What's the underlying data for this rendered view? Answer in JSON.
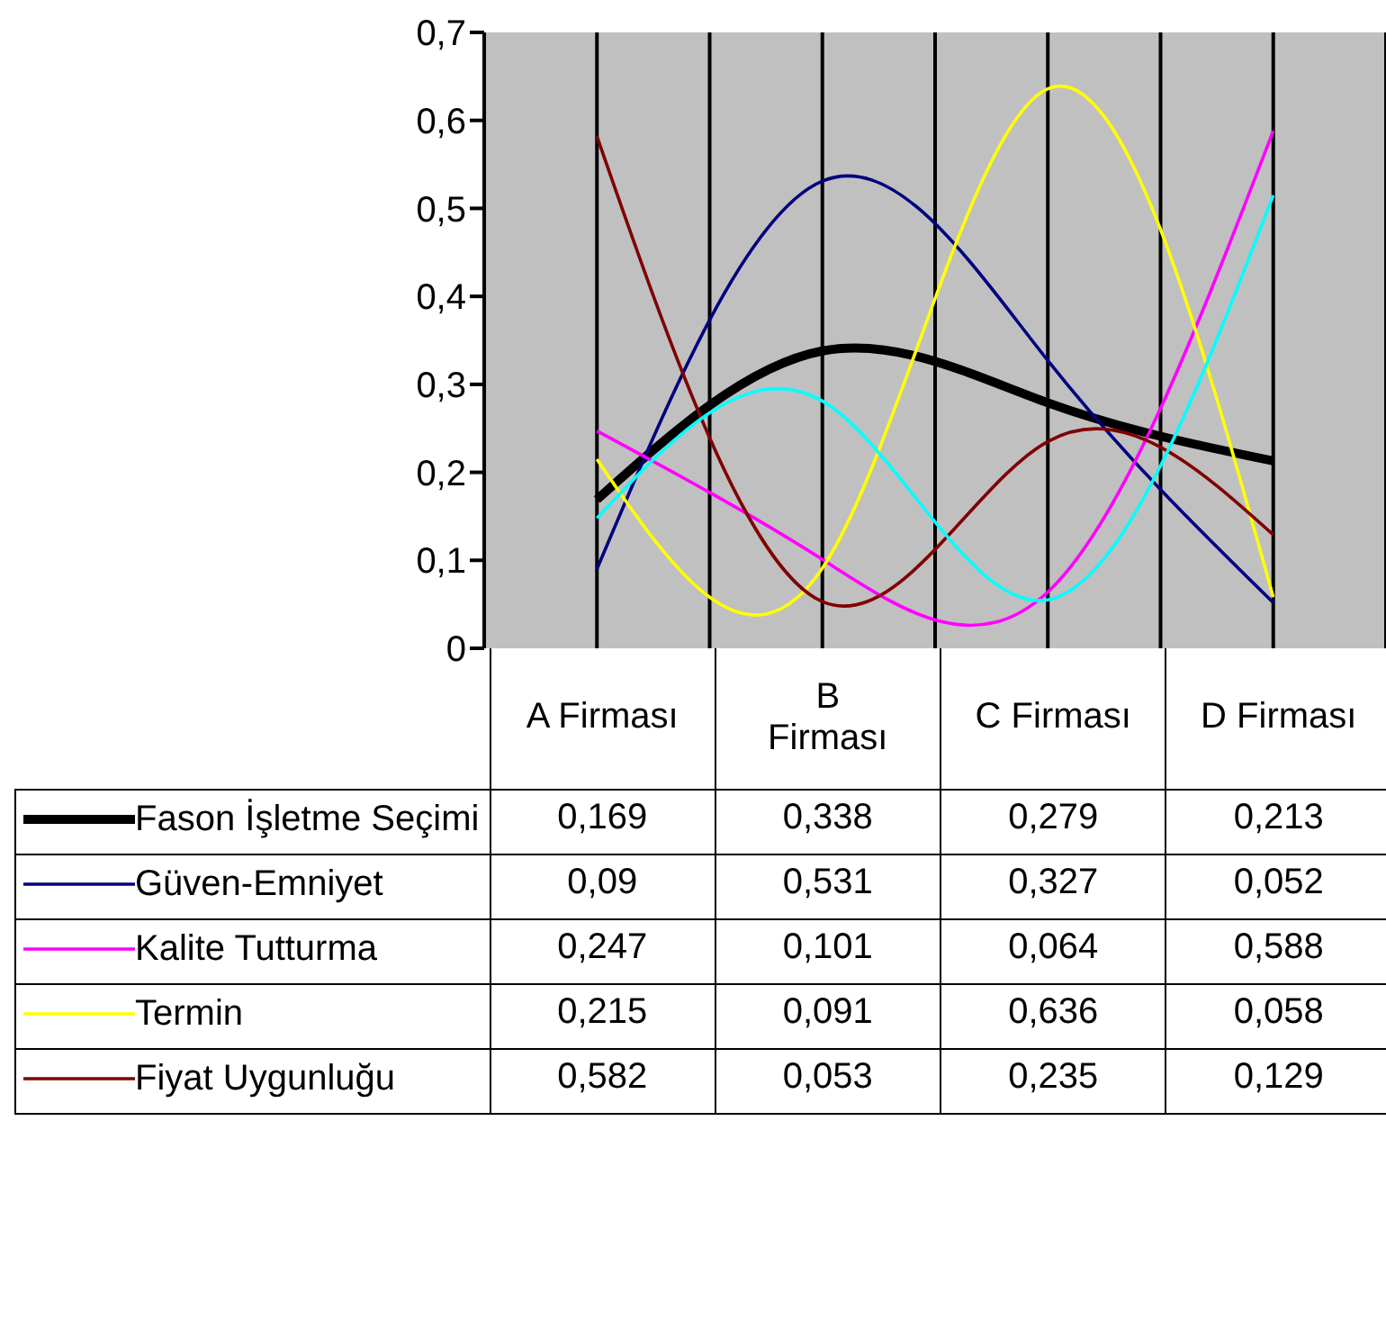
{
  "chart_data": {
    "type": "line",
    "categories": [
      "A Firması",
      "B\nFirması",
      "C Firması",
      "D Firması"
    ],
    "series": [
      {
        "name": "Fason İşletme Seçimi",
        "color": "#000000",
        "values": [
          0.169,
          0.338,
          0.279,
          0.213
        ],
        "value_labels": [
          "0,169",
          "0,338",
          "0,279",
          "0,213"
        ]
      },
      {
        "name": "Güven-Emniyet",
        "color": "#000080",
        "values": [
          0.09,
          0.531,
          0.327,
          0.052
        ],
        "value_labels": [
          "0,09",
          "0,531",
          "0,327",
          "0,052"
        ]
      },
      {
        "name": "Kalite Tutturma",
        "color": "#ff00ff",
        "values": [
          0.247,
          0.101,
          0.064,
          0.588
        ],
        "value_labels": [
          "0,247",
          "0,101",
          "0,064",
          "0,588"
        ]
      },
      {
        "name": "Termin",
        "color": "#ffff00",
        "values": [
          0.215,
          0.091,
          0.636,
          0.058
        ],
        "value_labels": [
          "0,215",
          "0,091",
          "0,636",
          "0,058"
        ]
      },
      {
        "name": "Fiyat Uygunluğu",
        "color": "#800000",
        "values": [
          0.582,
          0.053,
          0.235,
          0.129
        ],
        "value_labels": [
          "0,582",
          "0,053",
          "0,235",
          "0,129"
        ]
      },
      {
        "color": "#00ffff",
        "values": [
          0.148,
          0.281,
          0.055,
          0.515
        ]
      }
    ],
    "ylim": [
      0,
      0.7
    ],
    "yticks": [
      {
        "value": 0,
        "label": "0"
      },
      {
        "value": 0.1,
        "label": "0,1"
      },
      {
        "value": 0.2,
        "label": "0,2"
      },
      {
        "value": 0.3,
        "label": "0,3"
      },
      {
        "value": 0.4,
        "label": "0,4"
      },
      {
        "value": 0.5,
        "label": "0,5"
      },
      {
        "value": 0.6,
        "label": "0,6"
      },
      {
        "value": 0.7,
        "label": "0,7"
      }
    ],
    "grid": "x",
    "legend": "bottom",
    "marker": "none",
    "line_style": "solid"
  }
}
